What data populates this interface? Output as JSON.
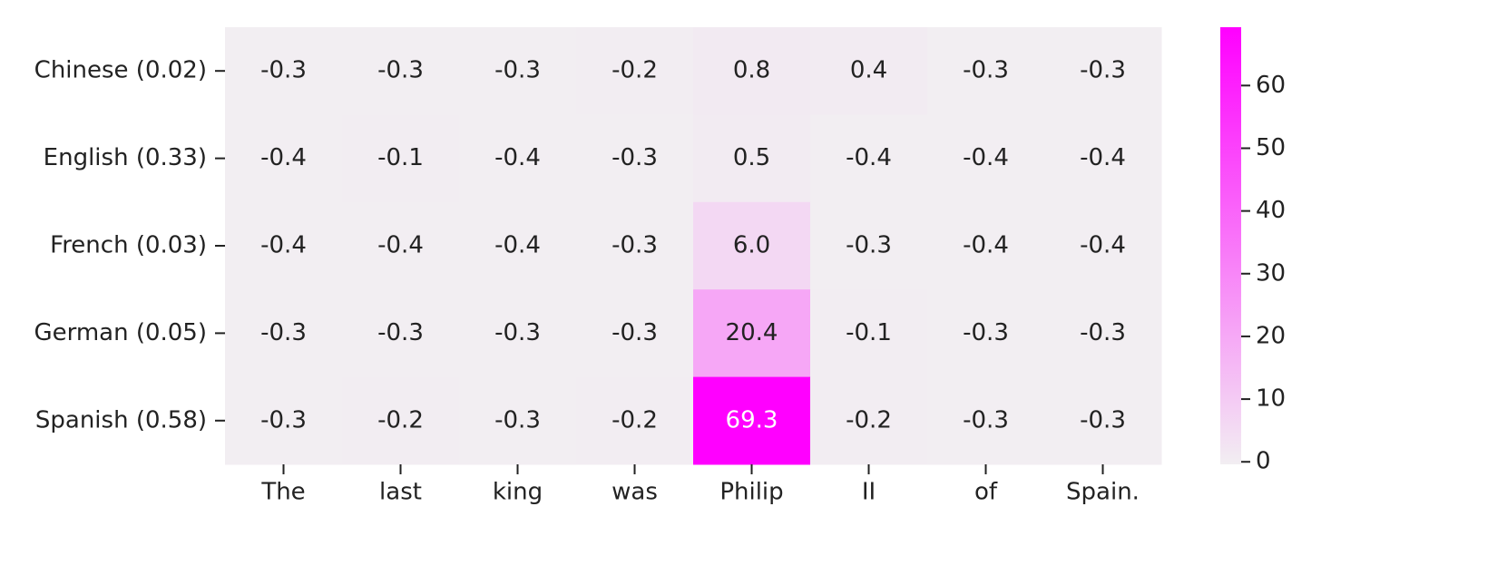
{
  "chart_data": {
    "type": "heatmap",
    "categories": [
      "The",
      "last",
      "king",
      "was",
      "Philip",
      "II",
      "of",
      "Spain."
    ],
    "rows": [
      "Chinese (0.02)",
      "English (0.33)",
      "French (0.03)",
      "German (0.05)",
      "Spanish (0.58)"
    ],
    "values": [
      [
        -0.3,
        -0.3,
        -0.3,
        -0.2,
        0.8,
        0.4,
        -0.3,
        -0.3
      ],
      [
        -0.4,
        -0.1,
        -0.4,
        -0.3,
        0.5,
        -0.4,
        -0.4,
        -0.4
      ],
      [
        -0.4,
        -0.4,
        -0.4,
        -0.3,
        6.0,
        -0.3,
        -0.4,
        -0.4
      ],
      [
        -0.3,
        -0.3,
        -0.3,
        -0.3,
        20.4,
        -0.1,
        -0.3,
        -0.3
      ],
      [
        -0.3,
        -0.2,
        -0.3,
        -0.2,
        69.3,
        -0.2,
        -0.3,
        -0.3
      ]
    ],
    "value_labels": [
      [
        "-0.3",
        "-0.3",
        "-0.3",
        "-0.2",
        "0.8",
        "0.4",
        "-0.3",
        "-0.3"
      ],
      [
        "-0.4",
        "-0.1",
        "-0.4",
        "-0.3",
        "0.5",
        "-0.4",
        "-0.4",
        "-0.4"
      ],
      [
        "-0.4",
        "-0.4",
        "-0.4",
        "-0.3",
        "6.0",
        "-0.3",
        "-0.4",
        "-0.4"
      ],
      [
        "-0.3",
        "-0.3",
        "-0.3",
        "-0.3",
        "20.4",
        "-0.1",
        "-0.3",
        "-0.3"
      ],
      [
        "-0.3",
        "-0.2",
        "-0.3",
        "-0.2",
        "69.3",
        "-0.2",
        "-0.3",
        "-0.3"
      ]
    ],
    "colormap": [
      "#f2eef2",
      "#ff00ff"
    ],
    "clim": [
      -0.4,
      69.3
    ],
    "cticks": [
      0,
      10,
      20,
      30,
      40,
      50,
      60
    ]
  }
}
